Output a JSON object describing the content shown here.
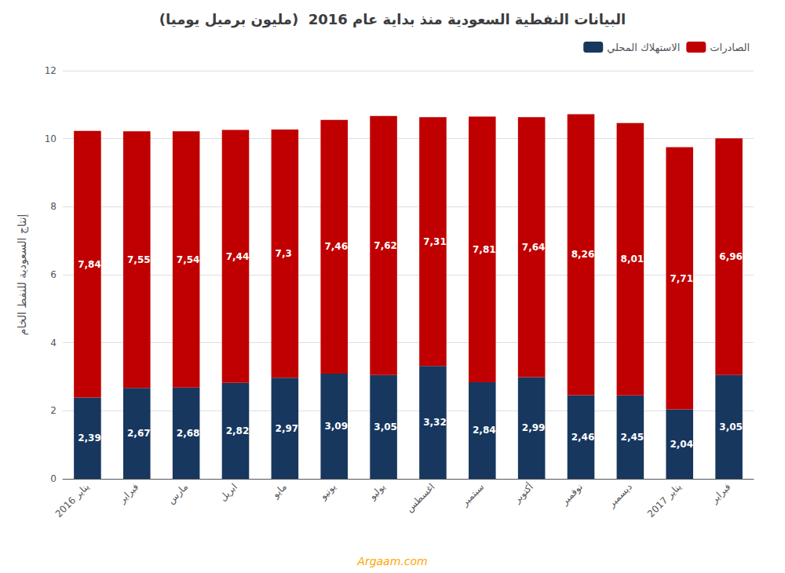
{
  "chart_data": {
    "type": "bar",
    "title": "البيانات النفطية السعودية منذ بداية عام 2016  (مليون برميل يوميا)",
    "ylabel": "إنتاج السعودية للنفط الخام",
    "categories": [
      "يناير 2016",
      "فبراير",
      "مارس",
      "ابريل",
      "مايو",
      "يونيو",
      "يوليو",
      "اغسطس",
      "سبتمبر",
      "أكتوبر",
      "نوفمبر",
      "ديسمبر",
      "يناير 2017",
      "فبراير"
    ],
    "series": [
      {
        "name": "الاستهلاك المحلي",
        "color": "#17375e",
        "values": [
          2.39,
          2.67,
          2.68,
          2.82,
          2.97,
          3.09,
          3.05,
          3.32,
          2.84,
          2.99,
          2.46,
          2.45,
          2.04,
          3.05
        ],
        "value_labels": [
          "2,39",
          "2,67",
          "2,68",
          "2,82",
          "2,97",
          "3,09",
          "3,05",
          "3,32",
          "2,84",
          "2,99",
          "2,46",
          "2,45",
          "2,04",
          "3,05"
        ]
      },
      {
        "name": "الصادرات",
        "color": "#c00000",
        "values": [
          7.84,
          7.55,
          7.54,
          7.44,
          7.3,
          7.46,
          7.62,
          7.31,
          7.81,
          7.64,
          8.26,
          8.01,
          7.71,
          6.96
        ],
        "value_labels": [
          "7,84",
          "7,55",
          "7,54",
          "7,44",
          "7,3",
          "7,46",
          "7,62",
          "7,31",
          "7,81",
          "7,64",
          "8,26",
          "8,01",
          "7,71",
          "6,96"
        ]
      }
    ],
    "stacked": true,
    "data_labels": true,
    "ylim": [
      0,
      12
    ],
    "yticks": [
      0,
      2,
      4,
      6,
      8,
      10,
      12
    ],
    "grid": true,
    "legend": "upper right",
    "annotations": [
      {
        "text": "Argaam.com",
        "color": "#ffa500"
      }
    ]
  }
}
